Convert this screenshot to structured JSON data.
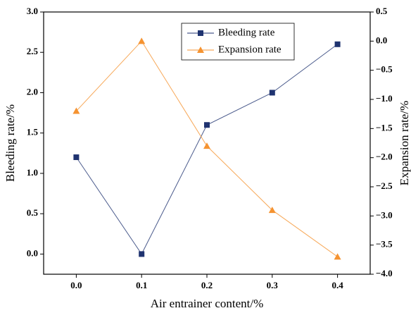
{
  "chart_data": {
    "type": "line",
    "x_label": "Air entrainer content/%",
    "y_label": "Bleeding rate/%",
    "y2_label": "Expansion rate/%",
    "x": [
      0,
      0.1,
      0.2,
      0.3,
      0.4
    ],
    "series": [
      {
        "name": "Bleeding rate",
        "color": "#1f3370",
        "marker": "square",
        "values": [
          1.2,
          0.0,
          1.6,
          2.0,
          2.6
        ]
      },
      {
        "name": "Expansion rate",
        "color": "#f59331",
        "marker": "triangle",
        "axis": "y2",
        "values": [
          -1.2,
          0.0,
          -1.8,
          -2.9,
          -3.7
        ]
      }
    ],
    "xlim": [
      -0.05,
      0.45
    ],
    "xticks": [
      {
        "value": 0,
        "label": "0.0"
      },
      0.1,
      0.2,
      0.3,
      0.4
    ],
    "ylim": [
      -0.25,
      3.0
    ],
    "yticks": [
      {
        "value": 0,
        "label": "0.0"
      },
      0.5,
      {
        "value": 1,
        "label": "1.0"
      },
      1.5,
      {
        "value": 2,
        "label": "2.0"
      },
      2.5,
      {
        "value": 3,
        "label": "3.0"
      }
    ],
    "y2lim": [
      -4.0,
      0.5
    ],
    "y2ticks": [
      {
        "value": -4,
        "label": "−4.0"
      },
      {
        "value": -3.5,
        "label": "−3.5"
      },
      {
        "value": -3,
        "label": "−3.0"
      },
      {
        "value": -2.5,
        "label": "−2.5"
      },
      {
        "value": -2,
        "label": "−2.0"
      },
      {
        "value": -1.5,
        "label": "−1.5"
      },
      {
        "value": -1,
        "label": "−1.0"
      },
      {
        "value": -0.5,
        "label": "−0.5"
      },
      {
        "value": 0,
        "label": "0.0"
      },
      0.5
    ]
  }
}
